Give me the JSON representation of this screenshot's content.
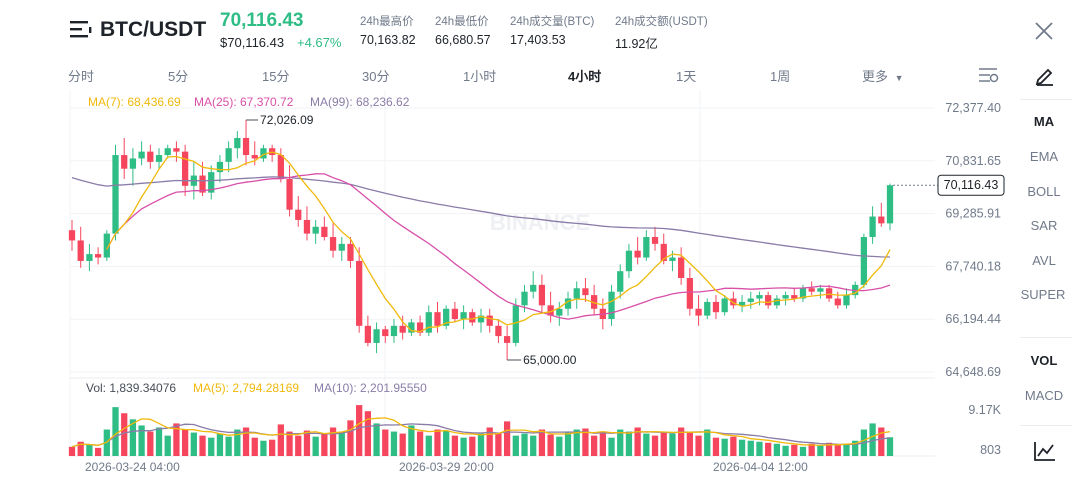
{
  "header": {
    "pair": "BTC/USDT",
    "price": "70,116.43",
    "price_usd": "$70,116.43",
    "change": "+4.67%",
    "stats": [
      {
        "label": "24h最高价",
        "value": "70,163.82"
      },
      {
        "label": "24h最低价",
        "value": "66,680.57"
      },
      {
        "label": "24h成交量(BTC)",
        "value": "17,403.53"
      },
      {
        "label": "24h成交额(USDT)",
        "value": "11.92亿"
      }
    ]
  },
  "tabs": [
    {
      "label": "分时"
    },
    {
      "label": "5分"
    },
    {
      "label": "15分"
    },
    {
      "label": "30分"
    },
    {
      "label": "1小时"
    },
    {
      "label": "4小时"
    },
    {
      "label": "1天"
    },
    {
      "label": "1周"
    },
    {
      "label": "更多"
    }
  ],
  "active_tab": "4小时",
  "indicators": {
    "main": [
      {
        "label": "MA"
      },
      {
        "label": "EMA"
      },
      {
        "label": "BOLL"
      },
      {
        "label": "SAR"
      },
      {
        "label": "AVL"
      },
      {
        "label": "SUPER"
      }
    ],
    "sub": [
      {
        "label": "VOL"
      },
      {
        "label": "MACD"
      }
    ]
  },
  "ma_legend": {
    "ma7": "MA(7): 68,436.69",
    "ma25": "MA(25): 67,370.72",
    "ma99": "MA(99): 68,236.62"
  },
  "vol_legend": {
    "vol": "Vol: 1,839.34076",
    "ma5": "MA(5): 2,794.28169",
    "ma10": "MA(10): 2,201.95550"
  },
  "price_axis": [
    "72,377.40",
    "70,831.65",
    "69,285.91",
    "67,740.18",
    "66,194.44",
    "64,648.69"
  ],
  "vol_axis": [
    "9.17K",
    "803"
  ],
  "current_price_tag": "70,116.43",
  "high_marker": "72,026.09",
  "low_marker": "65,000.00",
  "dates": [
    "2026-03-24 04:00",
    "2026-03-29 20:00",
    "2026-04-04 12:00"
  ],
  "watermark": "BINANCE",
  "colors": {
    "up": "#2ebd85",
    "down": "#f6465d",
    "ma7": "#f0b90b",
    "ma25": "#d84fa8",
    "ma99": "#8a7ca8"
  },
  "chart_data": {
    "type": "candlestick",
    "ylim": [
      64648.69,
      72377.4
    ],
    "candles": [
      [
        68800,
        69100,
        68200,
        68500
      ],
      [
        68500,
        68900,
        67700,
        67900
      ],
      [
        67900,
        68400,
        67600,
        68100
      ],
      [
        68100,
        68300,
        67800,
        68000
      ],
      [
        68000,
        68800,
        67900,
        68700
      ],
      [
        68700,
        71300,
        68500,
        71000
      ],
      [
        71000,
        71500,
        70300,
        70600
      ],
      [
        70600,
        71200,
        70100,
        70900
      ],
      [
        70900,
        71400,
        70700,
        71100
      ],
      [
        71100,
        71300,
        70600,
        70800
      ],
      [
        70800,
        71200,
        70600,
        71000
      ],
      [
        71000,
        71300,
        70900,
        71200
      ],
      [
        71200,
        71400,
        70800,
        71100
      ],
      [
        71100,
        71300,
        69800,
        70100
      ],
      [
        70100,
        70800,
        69700,
        70400
      ],
      [
        70400,
        70800,
        69800,
        69900
      ],
      [
        69900,
        70700,
        69700,
        70500
      ],
      [
        70500,
        71000,
        70200,
        70800
      ],
      [
        70800,
        71400,
        70500,
        71200
      ],
      [
        71200,
        71700,
        70900,
        71500
      ],
      [
        71500,
        72026.09,
        70700,
        71000
      ],
      [
        71000,
        71400,
        70700,
        70900
      ],
      [
        70900,
        71300,
        70800,
        71200
      ],
      [
        71200,
        71300,
        70800,
        71000
      ],
      [
        71000,
        71200,
        70200,
        70300
      ],
      [
        70300,
        70700,
        69200,
        69400
      ],
      [
        69400,
        69800,
        68900,
        69100
      ],
      [
        69100,
        69500,
        68500,
        68700
      ],
      [
        68700,
        69100,
        68400,
        68900
      ],
      [
        68900,
        69200,
        68500,
        68600
      ],
      [
        68600,
        69000,
        68000,
        68200
      ],
      [
        68200,
        68600,
        67900,
        68400
      ],
      [
        68400,
        68600,
        67700,
        67900
      ],
      [
        67900,
        68300,
        65800,
        66000
      ],
      [
        66000,
        66300,
        65400,
        65500
      ],
      [
        65500,
        66100,
        65200,
        65900
      ],
      [
        65900,
        66000,
        65500,
        65700
      ],
      [
        65700,
        66200,
        65500,
        66000
      ],
      [
        66000,
        66300,
        65600,
        65800
      ],
      [
        65800,
        66200,
        65700,
        66100
      ],
      [
        66100,
        66300,
        65700,
        65800
      ],
      [
        65800,
        66600,
        65700,
        66400
      ],
      [
        66400,
        66700,
        65800,
        66000
      ],
      [
        66000,
        66600,
        65900,
        66500
      ],
      [
        66500,
        66700,
        66100,
        66200
      ],
      [
        66200,
        66600,
        65900,
        66400
      ],
      [
        66400,
        66500,
        66000,
        66100
      ],
      [
        66100,
        66500,
        65800,
        66300
      ],
      [
        66300,
        66500,
        65800,
        66000
      ],
      [
        66000,
        66200,
        65500,
        65700
      ],
      [
        65700,
        66000,
        65000,
        65500
      ],
      [
        65500,
        66800,
        65400,
        66600
      ],
      [
        66600,
        67200,
        66400,
        67000
      ],
      [
        67000,
        67600,
        66800,
        67200
      ],
      [
        67200,
        67500,
        66400,
        66600
      ],
      [
        66600,
        67000,
        66100,
        66300
      ],
      [
        66300,
        66700,
        66000,
        66500
      ],
      [
        66500,
        67000,
        66300,
        66800
      ],
      [
        66800,
        67300,
        66500,
        67100
      ],
      [
        67100,
        67400,
        66700,
        66900
      ],
      [
        66900,
        67200,
        66300,
        66500
      ],
      [
        66500,
        66800,
        65900,
        66200
      ],
      [
        66200,
        67200,
        66000,
        67000
      ],
      [
        67000,
        67800,
        66800,
        67600
      ],
      [
        67600,
        68400,
        67400,
        68200
      ],
      [
        68200,
        68600,
        67800,
        68000
      ],
      [
        68000,
        68800,
        67900,
        68600
      ],
      [
        68600,
        68900,
        68200,
        68400
      ],
      [
        68400,
        68700,
        67800,
        67900
      ],
      [
        67900,
        68200,
        67600,
        68000
      ],
      [
        68000,
        68300,
        67200,
        67400
      ],
      [
        67400,
        67700,
        66300,
        66500
      ],
      [
        66500,
        66900,
        66000,
        66300
      ],
      [
        66300,
        66800,
        66200,
        66700
      ],
      [
        66700,
        66900,
        66200,
        66400
      ],
      [
        66400,
        66900,
        66300,
        66800
      ],
      [
        66800,
        67000,
        66500,
        66600
      ],
      [
        66600,
        66900,
        66400,
        66700
      ],
      [
        66700,
        67000,
        66500,
        66800
      ],
      [
        66800,
        67000,
        66600,
        66900
      ],
      [
        66900,
        67000,
        66500,
        66600
      ],
      [
        66600,
        66900,
        66500,
        66800
      ],
      [
        66800,
        67000,
        66600,
        66900
      ],
      [
        66900,
        67100,
        66700,
        66800
      ],
      [
        66800,
        67200,
        66700,
        67100
      ],
      [
        67100,
        67300,
        66900,
        67000
      ],
      [
        67000,
        67200,
        66800,
        67100
      ],
      [
        67100,
        67200,
        66700,
        66800
      ],
      [
        66800,
        67000,
        66500,
        66600
      ],
      [
        66600,
        67100,
        66500,
        66900
      ],
      [
        66900,
        67300,
        66800,
        67200
      ],
      [
        67200,
        68700,
        67100,
        68600
      ],
      [
        68600,
        69500,
        68400,
        69200
      ],
      [
        69200,
        69600,
        68900,
        69000
      ],
      [
        69000,
        70163.82,
        68800,
        70116.43
      ]
    ],
    "volume": [
      900,
      1400,
      1100,
      800,
      2600,
      4800,
      4200,
      3600,
      3000,
      2400,
      2800,
      2000,
      3200,
      2600,
      2300,
      2000,
      1800,
      2200,
      1900,
      2600,
      2800,
      1800,
      1500,
      1600,
      3100,
      2400,
      2000,
      2500,
      1900,
      2200,
      2800,
      2400,
      3500,
      5000,
      4400,
      3200,
      2600,
      2400,
      2200,
      3000,
      2400,
      2000,
      2600,
      2500,
      2000,
      1800,
      1900,
      2200,
      2800,
      2300,
      3400,
      2000,
      2200,
      2000,
      2600,
      2100,
      1900,
      2300,
      2600,
      2700,
      2000,
      2400,
      1800,
      2600,
      2400,
      2800,
      2200,
      2000,
      2400,
      2200,
      2800,
      2300,
      2000,
      2600,
      1800,
      1700,
      1900,
      1600,
      1500,
      1400,
      1300,
      1200,
      1000,
      1100,
      900,
      1200,
      1000,
      1300,
      1100,
      1200,
      1500,
      2600,
      3200,
      2800,
      1839.34
    ]
  }
}
